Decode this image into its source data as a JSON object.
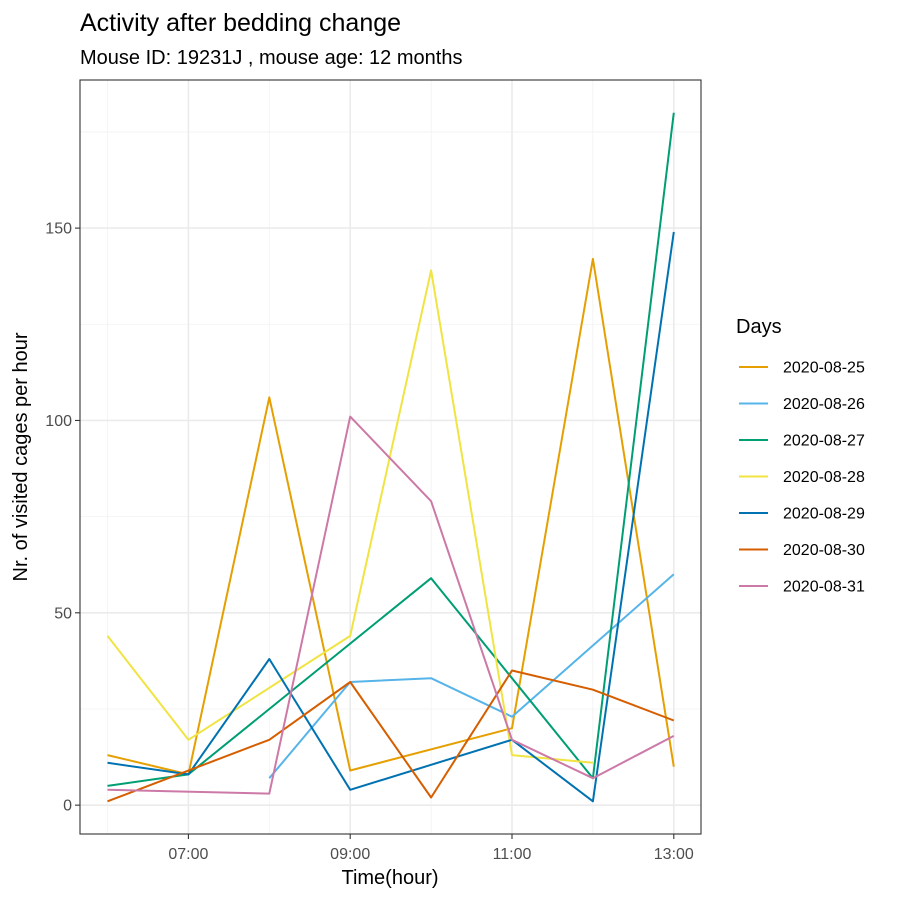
{
  "chart_data": {
    "type": "line",
    "title": "Activity after bedding change",
    "subtitle": "Mouse ID:  19231J , mouse age:  12 months",
    "xlabel": "Time(hour)",
    "ylabel": "Nr. of visited cages per hour",
    "x": [
      "06:00",
      "07:00",
      "08:00",
      "09:00",
      "10:00",
      "11:00",
      "12:00",
      "13:00"
    ],
    "x_tick_labels": [
      "07:00",
      "09:00",
      "11:00",
      "13:00"
    ],
    "y_ticks": [
      0,
      50,
      100,
      150
    ],
    "ylim": [
      -7.5,
      188.5
    ],
    "grid": true,
    "legend_title": "Days",
    "legend_position": "right",
    "series": [
      {
        "name": "2020-08-25",
        "color": "#E69F00",
        "values": [
          13,
          8,
          106,
          9,
          null,
          20,
          142,
          10
        ]
      },
      {
        "name": "2020-08-26",
        "color": "#56B4E9",
        "values": [
          null,
          null,
          7,
          32,
          33,
          23,
          null,
          60
        ]
      },
      {
        "name": "2020-08-27",
        "color": "#009E73",
        "values": [
          5,
          8,
          null,
          null,
          59,
          null,
          7,
          180
        ]
      },
      {
        "name": "2020-08-28",
        "color": "#F0E442",
        "values": [
          44,
          17,
          null,
          44,
          139,
          13,
          11,
          null
        ]
      },
      {
        "name": "2020-08-29",
        "color": "#0072B2",
        "values": [
          11,
          8,
          38,
          4,
          null,
          17,
          1,
          149
        ]
      },
      {
        "name": "2020-08-30",
        "color": "#D55E00",
        "values": [
          1,
          null,
          17,
          32,
          2,
          35,
          30,
          22
        ]
      },
      {
        "name": "2020-08-31",
        "color": "#CC79A7",
        "values": [
          4,
          null,
          3,
          101,
          79,
          17,
          7,
          18
        ]
      }
    ]
  }
}
